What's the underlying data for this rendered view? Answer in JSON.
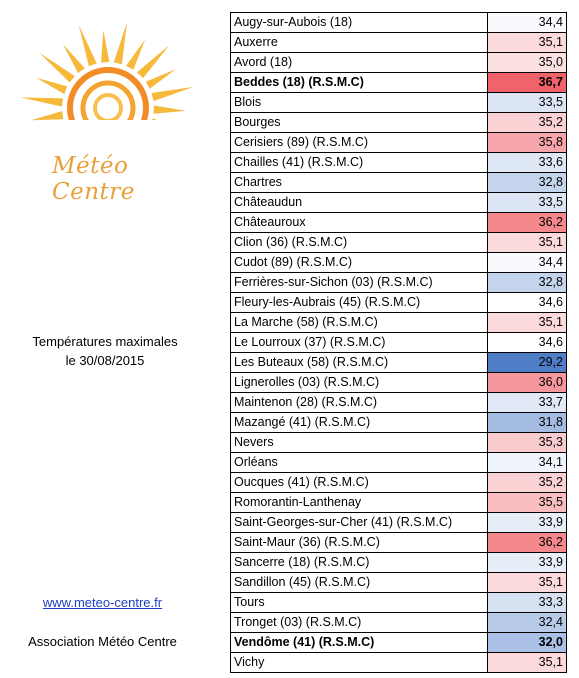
{
  "logo": {
    "text": "Météo Centre"
  },
  "caption": {
    "line1": "Températures maximales",
    "line2": "le 30/08/2015"
  },
  "footer": {
    "link": "www.meteo-centre.fr",
    "association": "Association Météo Centre"
  },
  "colors": {
    "min": "#4f7dc6",
    "mid": "#ffffff",
    "max": "#f0636a"
  },
  "rows": [
    {
      "city": "Augy-sur-Aubois (18)",
      "value": "34,4"
    },
    {
      "city": "Auxerre",
      "value": "35,1"
    },
    {
      "city": "Avord (18)",
      "value": "35,0"
    },
    {
      "city": "Beddes (18) (R.S.M.C)",
      "value": "36,7",
      "bold": true
    },
    {
      "city": "Blois",
      "value": "33,5"
    },
    {
      "city": "Bourges",
      "value": "35,2"
    },
    {
      "city": "Cerisiers (89) (R.S.M.C)",
      "value": "35,8"
    },
    {
      "city": "Chailles (41) (R.S.M.C)",
      "value": "33,6"
    },
    {
      "city": "Chartres",
      "value": "32,8"
    },
    {
      "city": "Châteaudun",
      "value": "33,5"
    },
    {
      "city": "Châteauroux",
      "value": "36,2"
    },
    {
      "city": "Clion  (36) (R.S.M.C)",
      "value": "35,1"
    },
    {
      "city": "Cudot (89) (R.S.M.C)",
      "value": "34,4"
    },
    {
      "city": "Ferrières-sur-Sichon (03) (R.S.M.C)",
      "value": "32,8"
    },
    {
      "city": "Fleury-les-Aubrais (45) (R.S.M.C)",
      "value": "34,6"
    },
    {
      "city": "La Marche (58) (R.S.M.C)",
      "value": "35,1"
    },
    {
      "city": "Le Lourroux (37) (R.S.M.C)",
      "value": "34,6"
    },
    {
      "city": "Les Buteaux (58) (R.S.M.C)",
      "value": "29,2"
    },
    {
      "city": "Lignerolles (03) (R.S.M.C)",
      "value": "36,0"
    },
    {
      "city": "Maintenon (28) (R.S.M.C)",
      "value": "33,7"
    },
    {
      "city": "Mazangé (41) (R.S.M.C)",
      "value": "31,8"
    },
    {
      "city": "Nevers",
      "value": "35,3"
    },
    {
      "city": "Orléans",
      "value": "34,1"
    },
    {
      "city": "Oucques (41) (R.S.M.C)",
      "value": "35,2"
    },
    {
      "city": "Romorantin-Lanthenay",
      "value": "35,5"
    },
    {
      "city": "Saint-Georges-sur-Cher (41) (R.S.M.C)",
      "value": "33,9"
    },
    {
      "city": "Saint-Maur (36) (R.S.M.C)",
      "value": "36,2"
    },
    {
      "city": "Sancerre (18) (R.S.M.C)",
      "value": "33,9"
    },
    {
      "city": "Sandillon (45) (R.S.M.C)",
      "value": "35,1"
    },
    {
      "city": "Tours",
      "value": "33,3"
    },
    {
      "city": "Tronget (03) (R.S.M.C)",
      "value": "32,4"
    },
    {
      "city": "Vendôme (41) (R.S.M.C)",
      "value": "32,0",
      "bold": true
    },
    {
      "city": "Vichy",
      "value": "35,1"
    }
  ]
}
